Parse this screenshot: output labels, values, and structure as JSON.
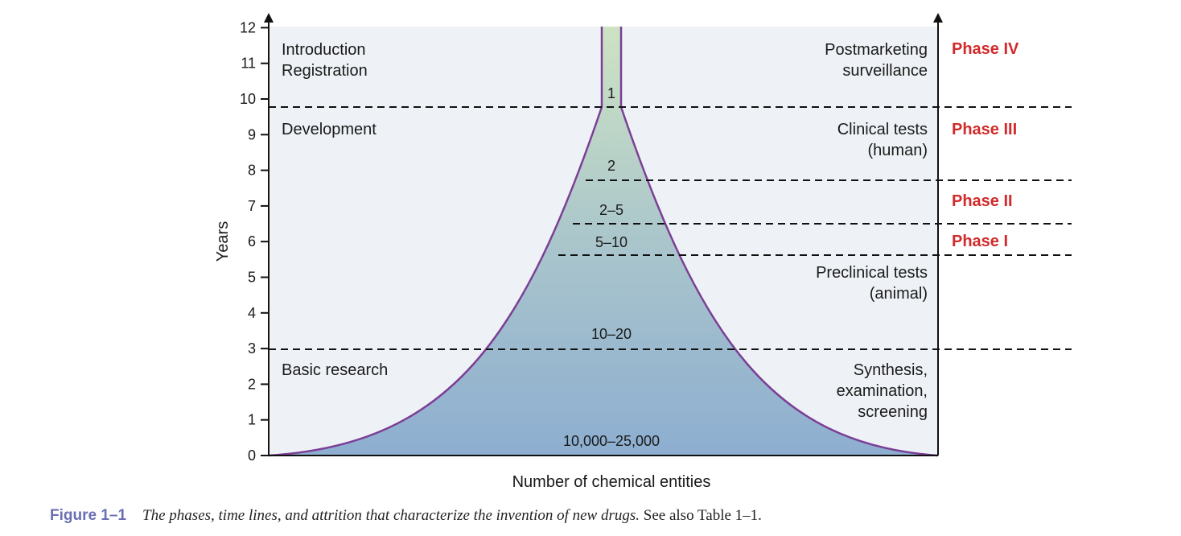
{
  "y_axis": {
    "label": "Years",
    "ticks": [
      "0",
      "1",
      "2",
      "3",
      "4",
      "5",
      "6",
      "7",
      "8",
      "9",
      "10",
      "11",
      "12"
    ]
  },
  "x_axis": {
    "label": "Number of chemical entities"
  },
  "left_labels": {
    "introduction": "Introduction",
    "registration": "Registration",
    "development": "Development",
    "basic_research": "Basic research"
  },
  "right_labels": {
    "postmarketing_1": "Postmarketing",
    "postmarketing_2": "surveillance",
    "clinical_1": "Clinical tests",
    "clinical_2": "(human)",
    "preclinical_1": "Preclinical tests",
    "preclinical_2": "(animal)",
    "synthesis_1": "Synthesis,",
    "synthesis_2": "examination,",
    "synthesis_3": "screening"
  },
  "phases": {
    "phase_4": "Phase IV",
    "phase_3": "Phase III",
    "phase_2": "Phase II",
    "phase_1": "Phase I"
  },
  "entity_counts": {
    "c1": "1",
    "c2": "2",
    "c3": "2–5",
    "c4": "5–10",
    "c5": "10–20",
    "c6": "10,000–25,000"
  },
  "caption": {
    "label": "Figure 1–1",
    "title": "The phases, time lines, and attrition that characterize the invention of new drugs.",
    "note": "See also Table 1–1."
  },
  "colors": {
    "background_panel": "#eef2f6",
    "funnel_top": "#cde3c3",
    "funnel_bottom": "#8daed0",
    "funnel_outline": "#7b3f96",
    "phase_text": "#d22a2a",
    "caption_label": "#6a6fb3"
  }
}
